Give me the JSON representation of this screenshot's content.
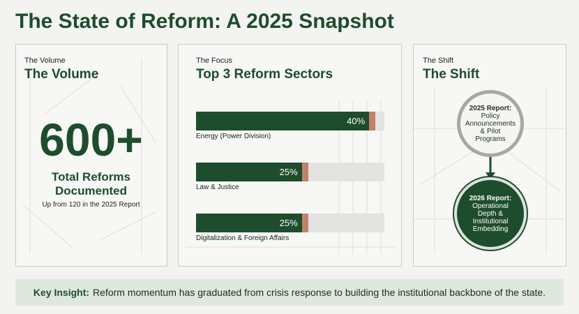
{
  "title": "The State of Reform: A 2025 Snapshot",
  "volume": {
    "label": "The Volume",
    "heading": "The Volume",
    "figure": "600+",
    "caption": "Total Reforms Documented",
    "note": "Up from 120 in the 2025 Report"
  },
  "chart_data": {
    "type": "bar",
    "label": "The Focus",
    "title": "Top 3 Reform Sectors",
    "categories": [
      "Energy (Power Division)",
      "Law & Justice",
      "Digitalization & Foreign Affairs"
    ],
    "values": [
      40,
      25,
      25
    ],
    "value_labels": [
      "40%",
      "25%",
      "25%"
    ],
    "xlim": [
      0,
      42
    ],
    "color": "#1d4d2c"
  },
  "shift": {
    "label": "The Shift",
    "heading": "The Shift",
    "from": {
      "title": "2025 Report:",
      "text": "Policy Announcements & Pilot Programs"
    },
    "to": {
      "title": "2026 Report:",
      "text": "Operational Depth & Institutional Embedding"
    }
  },
  "insight": {
    "lead": "Key Insight:",
    "text": "Reform momentum has graduated from crisis response to building the institutional backbone of the state."
  }
}
